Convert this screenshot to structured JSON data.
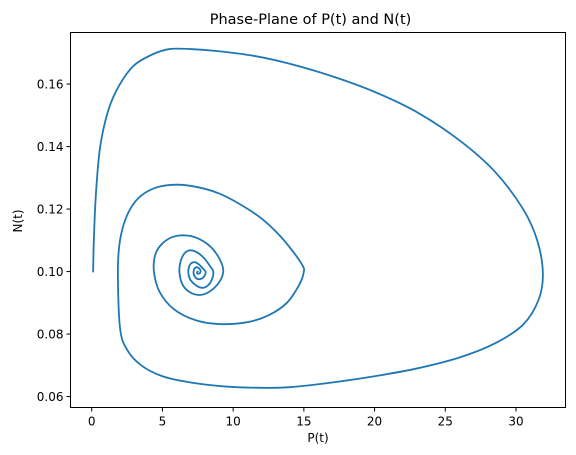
{
  "chart_data": {
    "type": "line",
    "title": "Phase-Plane of P(t) and N(t)",
    "xlabel": "P(t)",
    "ylabel": "N(t)",
    "xlim": [
      -1.5,
      33.5
    ],
    "ylim": [
      0.0565,
      0.1765
    ],
    "xticks": [
      0,
      5,
      10,
      15,
      20,
      25,
      30
    ],
    "xtick_labels": [
      "0",
      "5",
      "10",
      "15",
      "20",
      "25",
      "30"
    ],
    "yticks": [
      0.06,
      0.08,
      0.1,
      0.12,
      0.14,
      0.16
    ],
    "ytick_labels": [
      "0.06",
      "0.08",
      "0.10",
      "0.12",
      "0.14",
      "0.16"
    ],
    "grid": false,
    "series": [
      {
        "color": "#1f77b4",
        "x": [
          0.1,
          0.15,
          0.3,
          0.6,
          1.2,
          2.0,
          3.0,
          4.3,
          5.5,
          7.0,
          9.0,
          11.5,
          14.0,
          17.0,
          20.0,
          23.0,
          26.0,
          28.5,
          30.5,
          31.5,
          31.9,
          31.6,
          30.5,
          28.5,
          26.0,
          23.0,
          20.0,
          17.0,
          14.0,
          12.0,
          9.5,
          7.0,
          5.0,
          3.5,
          2.5,
          2.0,
          1.85,
          2.0,
          2.5,
          3.3,
          4.5,
          6.0,
          7.5,
          9.0,
          10.5,
          12.0,
          13.3,
          14.3,
          14.9,
          15.0,
          14.7,
          13.8,
          12.5,
          11.0,
          9.0,
          7.3,
          5.8,
          4.8,
          4.4,
          4.5,
          5.0,
          5.8,
          6.8,
          7.7,
          8.5,
          9.1,
          9.3,
          9.0,
          8.3,
          7.6,
          6.9,
          6.4,
          6.2,
          6.3,
          6.6,
          7.0,
          7.5,
          8.0,
          8.4,
          8.6,
          8.5,
          8.2,
          7.8,
          7.4,
          7.0,
          6.85,
          6.85,
          7.0,
          7.3,
          7.6,
          7.9,
          8.05,
          8.0,
          7.8,
          7.5,
          7.3,
          7.2,
          7.25,
          7.4,
          7.6,
          7.7,
          7.65,
          7.5,
          7.45,
          7.5
        ],
        "y": [
          0.1,
          0.11,
          0.125,
          0.14,
          0.152,
          0.16,
          0.166,
          0.1695,
          0.1712,
          0.1712,
          0.1705,
          0.169,
          0.1665,
          0.1625,
          0.1575,
          0.151,
          0.142,
          0.132,
          0.12,
          0.11,
          0.0995,
          0.091,
          0.083,
          0.077,
          0.0725,
          0.069,
          0.0665,
          0.0645,
          0.063,
          0.0628,
          0.0632,
          0.0645,
          0.0665,
          0.07,
          0.075,
          0.082,
          0.1,
          0.11,
          0.118,
          0.1235,
          0.1268,
          0.1278,
          0.127,
          0.125,
          0.1215,
          0.117,
          0.1115,
          0.106,
          0.102,
          0.1,
          0.096,
          0.09,
          0.086,
          0.0838,
          0.0832,
          0.0845,
          0.088,
          0.0935,
          0.1,
          0.1055,
          0.109,
          0.1112,
          0.1115,
          0.1102,
          0.1075,
          0.1035,
          0.1,
          0.0965,
          0.0935,
          0.0925,
          0.0935,
          0.096,
          0.1,
          0.1035,
          0.106,
          0.1068,
          0.106,
          0.104,
          0.1015,
          0.1,
          0.0975,
          0.0955,
          0.0948,
          0.0955,
          0.0972,
          0.099,
          0.101,
          0.1025,
          0.103,
          0.1022,
          0.1008,
          0.1,
          0.0988,
          0.0978,
          0.0976,
          0.0983,
          0.0995,
          0.1008,
          0.1014,
          0.101,
          0.1002,
          0.0995,
          0.0993,
          0.0998,
          0.1
        ]
      }
    ]
  }
}
